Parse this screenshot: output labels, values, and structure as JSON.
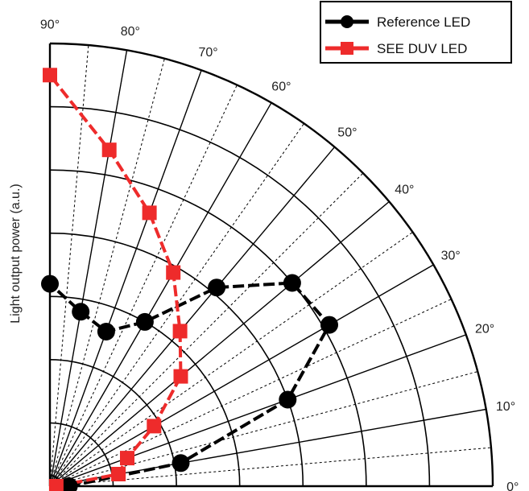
{
  "chart_data": {
    "type": "polar-line",
    "ylabel": "Light output power (a.u.)",
    "angle_range_deg": [
      0,
      90
    ],
    "angle_grid_step_deg": 5,
    "radial_grid_levels": [
      1,
      2,
      3,
      4,
      5,
      6,
      7
    ],
    "radial_max": 7,
    "angle_tick_labels": [
      {
        "deg": 0,
        "label": "0°"
      },
      {
        "deg": 10,
        "label": "10°"
      },
      {
        "deg": 20,
        "label": "20°"
      },
      {
        "deg": 30,
        "label": "30°"
      },
      {
        "deg": 40,
        "label": "40°"
      },
      {
        "deg": 50,
        "label": "50°"
      },
      {
        "deg": 60,
        "label": "60°"
      },
      {
        "deg": 70,
        "label": "70°"
      },
      {
        "deg": 80,
        "label": "80°"
      },
      {
        "deg": 90,
        "label": "90°"
      }
    ],
    "legend_position": "top-right",
    "series": [
      {
        "name": "Reference LED",
        "color": "#000000",
        "marker": "circle",
        "line": "dashed",
        "points": [
          {
            "angle": 0,
            "r": 0.3
          },
          {
            "angle": 10,
            "r": 2.1
          },
          {
            "angle": 20,
            "r": 4.0
          },
          {
            "angle": 30,
            "r": 5.1
          },
          {
            "angle": 40,
            "r": 5.0
          },
          {
            "angle": 50,
            "r": 4.1
          },
          {
            "angle": 60,
            "r": 3.0
          },
          {
            "angle": 70,
            "r": 2.6
          },
          {
            "angle": 80,
            "r": 2.8
          },
          {
            "angle": 90,
            "r": 3.2
          }
        ]
      },
      {
        "name": "SEE DUV LED",
        "color": "#ee2b2b",
        "marker": "square",
        "line": "dashed",
        "points": [
          {
            "angle": 0,
            "r": 0.1
          },
          {
            "angle": 10,
            "r": 1.1
          },
          {
            "angle": 20,
            "r": 1.3
          },
          {
            "angle": 30,
            "r": 1.9
          },
          {
            "angle": 40,
            "r": 2.7
          },
          {
            "angle": 50,
            "r": 3.2
          },
          {
            "angle": 60,
            "r": 3.9
          },
          {
            "angle": 70,
            "r": 4.6
          },
          {
            "angle": 80,
            "r": 5.4
          },
          {
            "angle": 90,
            "r": 6.5
          }
        ]
      }
    ]
  }
}
